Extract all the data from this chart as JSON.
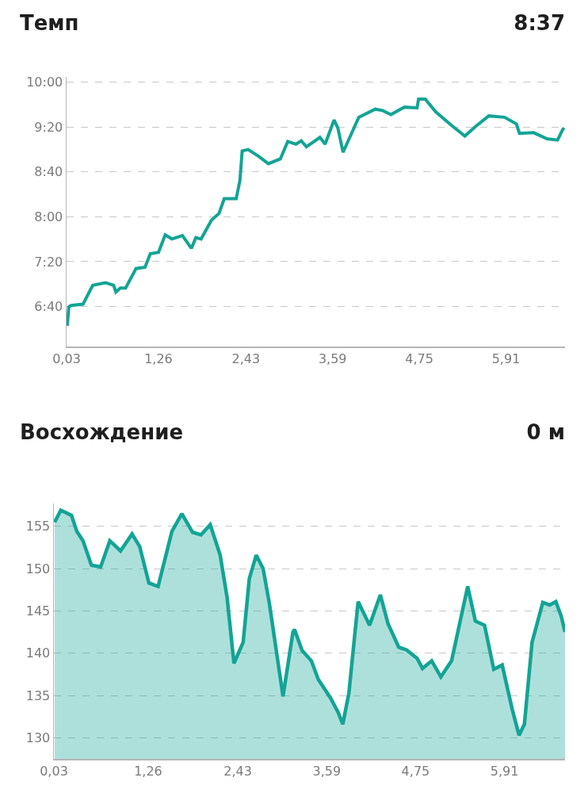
{
  "chart_data": [
    {
      "type": "line",
      "title": "Темп",
      "subtitle": "8:37",
      "grid": "y",
      "xlim": [
        0.03,
        6.7
      ],
      "xticks": [
        {
          "value": 0.03,
          "label": "0,03"
        },
        {
          "value": 1.26,
          "label": "1,26"
        },
        {
          "value": 2.43,
          "label": "2,43"
        },
        {
          "value": 3.59,
          "label": "3,59"
        },
        {
          "value": 4.75,
          "label": "4,75"
        },
        {
          "value": 5.91,
          "label": "5,91"
        }
      ],
      "ylim": [
        6.07,
        10.08
      ],
      "yticks": [
        {
          "value": 6.667,
          "label": "6:40"
        },
        {
          "value": 7.333,
          "label": "7:20"
        },
        {
          "value": 8,
          "label": "8:00"
        },
        {
          "value": 8.667,
          "label": "8:40"
        },
        {
          "value": 9.333,
          "label": "9:20"
        },
        {
          "value": 10,
          "label": "10:00"
        }
      ],
      "x": [
        0.04,
        0.06,
        0.09,
        0.25,
        0.38,
        0.55,
        0.66,
        0.69,
        0.75,
        0.82,
        0.96,
        1.08,
        1.15,
        1.26,
        1.35,
        1.44,
        1.58,
        1.7,
        1.76,
        1.83,
        1.97,
        2.07,
        2.14,
        2.3,
        2.35,
        2.38,
        2.46,
        2.6,
        2.73,
        2.89,
        2.99,
        3.1,
        3.17,
        3.24,
        3.42,
        3.49,
        3.61,
        3.66,
        3.73,
        3.94,
        4.16,
        4.26,
        4.37,
        4.55,
        4.72,
        4.74,
        4.83,
        4.97,
        5.18,
        5.36,
        5.5,
        5.68,
        5.89,
        6.05,
        6.09,
        6.28,
        6.46,
        6.6,
        6.67,
        6.69
      ],
      "series": [
        {
          "color": "#13a495",
          "values": [
            6.38,
            6.66,
            6.68,
            6.7,
            6.98,
            7.02,
            6.98,
            6.88,
            6.94,
            6.94,
            7.23,
            7.25,
            7.45,
            7.47,
            7.73,
            7.67,
            7.72,
            7.53,
            7.69,
            7.67,
            7.95,
            8.05,
            8.27,
            8.27,
            8.54,
            8.98,
            9.0,
            8.9,
            8.79,
            8.86,
            9.12,
            9.08,
            9.13,
            9.04,
            9.18,
            9.08,
            9.44,
            9.32,
            8.96,
            9.48,
            9.6,
            9.58,
            9.52,
            9.63,
            9.62,
            9.75,
            9.75,
            9.56,
            9.36,
            9.2,
            9.34,
            9.5,
            9.48,
            9.38,
            9.24,
            9.25,
            9.16,
            9.14,
            9.3,
            9.32
          ]
        }
      ]
    },
    {
      "type": "area",
      "title": "Восхождение",
      "subtitle": "0 м",
      "grid": "y",
      "xlim": [
        0.03,
        6.7
      ],
      "xticks": [
        {
          "value": 0.03,
          "label": "0,03"
        },
        {
          "value": 1.26,
          "label": "1,26"
        },
        {
          "value": 2.43,
          "label": "2,43"
        },
        {
          "value": 3.59,
          "label": "3,59"
        },
        {
          "value": 4.75,
          "label": "4,75"
        },
        {
          "value": 5.91,
          "label": "5,91"
        }
      ],
      "ylim": [
        127.5,
        157.7
      ],
      "yticks": [
        130,
        135,
        140,
        145,
        150,
        155
      ],
      "x": [
        0.04,
        0.12,
        0.26,
        0.33,
        0.41,
        0.52,
        0.64,
        0.76,
        0.9,
        1.05,
        1.15,
        1.27,
        1.39,
        1.57,
        1.7,
        1.84,
        1.95,
        2.07,
        2.2,
        2.29,
        2.38,
        2.5,
        2.58,
        2.67,
        2.76,
        2.84,
        3.02,
        3.15,
        3.17,
        3.27,
        3.39,
        3.48,
        3.64,
        3.74,
        3.8,
        3.88,
        4.0,
        4.15,
        4.29,
        4.39,
        4.53,
        4.63,
        4.77,
        4.84,
        4.96,
        5.08,
        5.22,
        5.43,
        5.53,
        5.65,
        5.77,
        5.88,
        6.01,
        6.1,
        6.17,
        6.27,
        6.41,
        6.5,
        6.58,
        6.65,
        6.7
      ],
      "series": [
        {
          "color": "#13a495",
          "values": [
            155.5,
            156.9,
            156.3,
            154.4,
            153.3,
            150.4,
            150.2,
            153.3,
            152.1,
            154.1,
            152.6,
            148.3,
            147.9,
            154.4,
            156.5,
            154.3,
            154.0,
            155.2,
            151.6,
            146.6,
            138.8,
            141.3,
            148.8,
            151.6,
            150.0,
            146.0,
            134.9,
            142.5,
            142.8,
            140.3,
            139.1,
            136.9,
            134.7,
            133.0,
            131.6,
            135.3,
            146.1,
            143.3,
            146.9,
            143.5,
            140.7,
            140.4,
            139.4,
            138.2,
            139.1,
            137.2,
            139.1,
            147.9,
            143.8,
            143.3,
            138.1,
            138.6,
            133.4,
            130.3,
            131.6,
            141.3,
            146.0,
            145.7,
            146.1,
            144.4,
            142.5
          ]
        }
      ]
    }
  ]
}
